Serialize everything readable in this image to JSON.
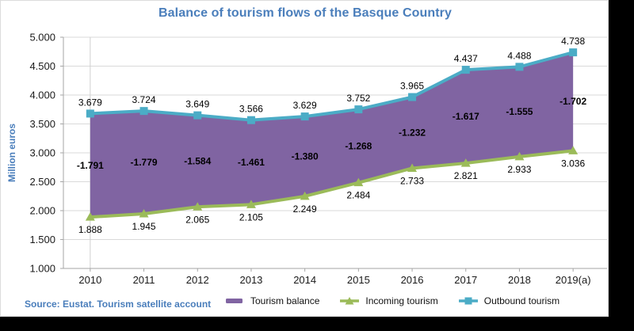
{
  "chart": {
    "title": "Balance of tourism flows of the Basque Country",
    "source": "Source: Eustat. Tourism satellite account"
  },
  "style": {
    "title_color": "#4a7ebb",
    "source_color": "#4a7ebb",
    "grid_color": "#d9d9d9",
    "axis_color": "#a6a6a6",
    "inner_axis_color": "#d0d0d0",
    "label_color": "#000000",
    "background": "#ffffff",
    "page_background": "#000000"
  },
  "chart_data": {
    "type": "area",
    "title": "Balance of tourism flows of the Basque Country",
    "xlabel": "",
    "ylabel": "Million euros",
    "categories": [
      "2010",
      "2011",
      "2012",
      "2013",
      "2014",
      "2015",
      "2016",
      "2017",
      "2018",
      "2019(a)"
    ],
    "series": [
      {
        "name": "Tourism balance",
        "type": "area-between",
        "color": "#8064A2",
        "values": [
          -1791,
          -1779,
          -1584,
          -1461,
          -1380,
          -1268,
          -1232,
          -1617,
          -1555,
          -1702
        ],
        "labels": [
          "-1.791",
          "-1.779",
          "-1.584",
          "-1.461",
          "-1.380",
          "-1.268",
          "-1.232",
          "-1.617",
          "-1.555",
          "-1.702"
        ]
      },
      {
        "name": "Incoming tourism",
        "type": "line",
        "marker": "triangle",
        "color": "#9BBB59",
        "values": [
          1888,
          1945,
          2065,
          2105,
          2249,
          2484,
          2733,
          2821,
          2933,
          3036
        ],
        "labels": [
          "1.888",
          "1.945",
          "2.065",
          "2.105",
          "2.249",
          "2.484",
          "2.733",
          "2.821",
          "2.933",
          "3.036"
        ]
      },
      {
        "name": "Outbound tourism",
        "type": "line",
        "marker": "square",
        "color": "#4BACC6",
        "values": [
          3679,
          3724,
          3649,
          3566,
          3629,
          3752,
          3965,
          4437,
          4488,
          4738
        ],
        "labels": [
          "3.679",
          "3.724",
          "3.649",
          "3.566",
          "3.629",
          "3.752",
          "3.965",
          "4.437",
          "4.488",
          "4.738"
        ]
      }
    ],
    "y_axis": {
      "min": 1000,
      "max": 5000,
      "step": 500,
      "tick_labels": [
        "1.000",
        "1.500",
        "2.000",
        "2.500",
        "3.000",
        "3.500",
        "4.000",
        "4.500",
        "5.000"
      ]
    },
    "grid": true,
    "legend_position": "bottom"
  }
}
